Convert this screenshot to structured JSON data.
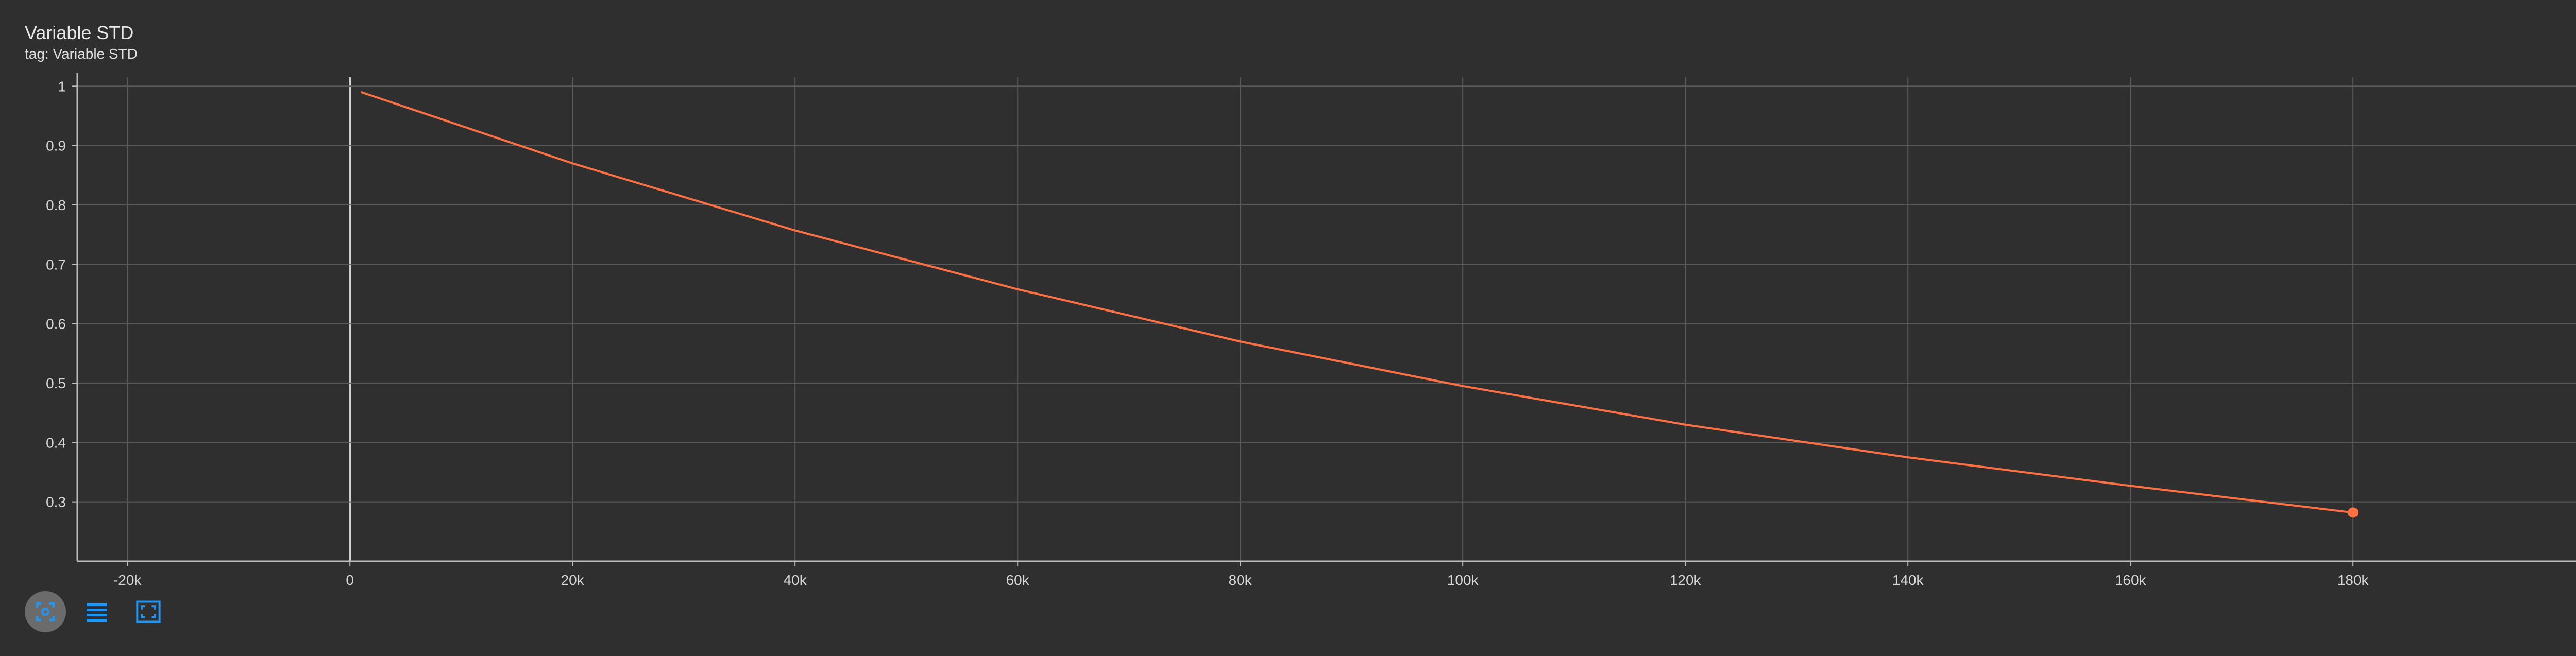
{
  "card": {
    "title": "Variable STD",
    "subtitle": "tag: Variable STD"
  },
  "toolbar": {
    "buttons": [
      {
        "icon": "fit-domain-icon",
        "active": true
      },
      {
        "icon": "data-table-icon",
        "active": false
      },
      {
        "icon": "fullscreen-icon",
        "active": false
      }
    ],
    "accent": "#2196f3"
  },
  "chart_data": {
    "type": "line",
    "title": "",
    "xlabel": "",
    "ylabel": "",
    "xlim": [
      -24500,
      200500
    ],
    "ylim": [
      0.2,
      1.015
    ],
    "x_ticks": [
      -20000,
      0,
      20000,
      40000,
      60000,
      80000,
      100000,
      120000,
      140000,
      160000,
      180000
    ],
    "x_tick_labels": [
      "-20k",
      "0",
      "20k",
      "40k",
      "60k",
      "80k",
      "100k",
      "120k",
      "140k",
      "160k",
      "180k"
    ],
    "y_ticks": [
      1,
      0.9,
      0.8,
      0.7,
      0.6,
      0.5,
      0.4,
      0.3
    ],
    "y_tick_labels": [
      "1",
      "0.9",
      "0.8",
      "0.7",
      "0.6",
      "0.5",
      "0.4",
      "0.3"
    ],
    "grid": true,
    "series": [
      {
        "color": "#ff7043",
        "x": [
          1000,
          20000,
          40000,
          60000,
          80000,
          100000,
          120000,
          140000,
          160000,
          180000
        ],
        "y": [
          0.99,
          0.87,
          0.757,
          0.658,
          0.57,
          0.495,
          0.43,
          0.375,
          0.327,
          0.282
        ]
      }
    ]
  }
}
